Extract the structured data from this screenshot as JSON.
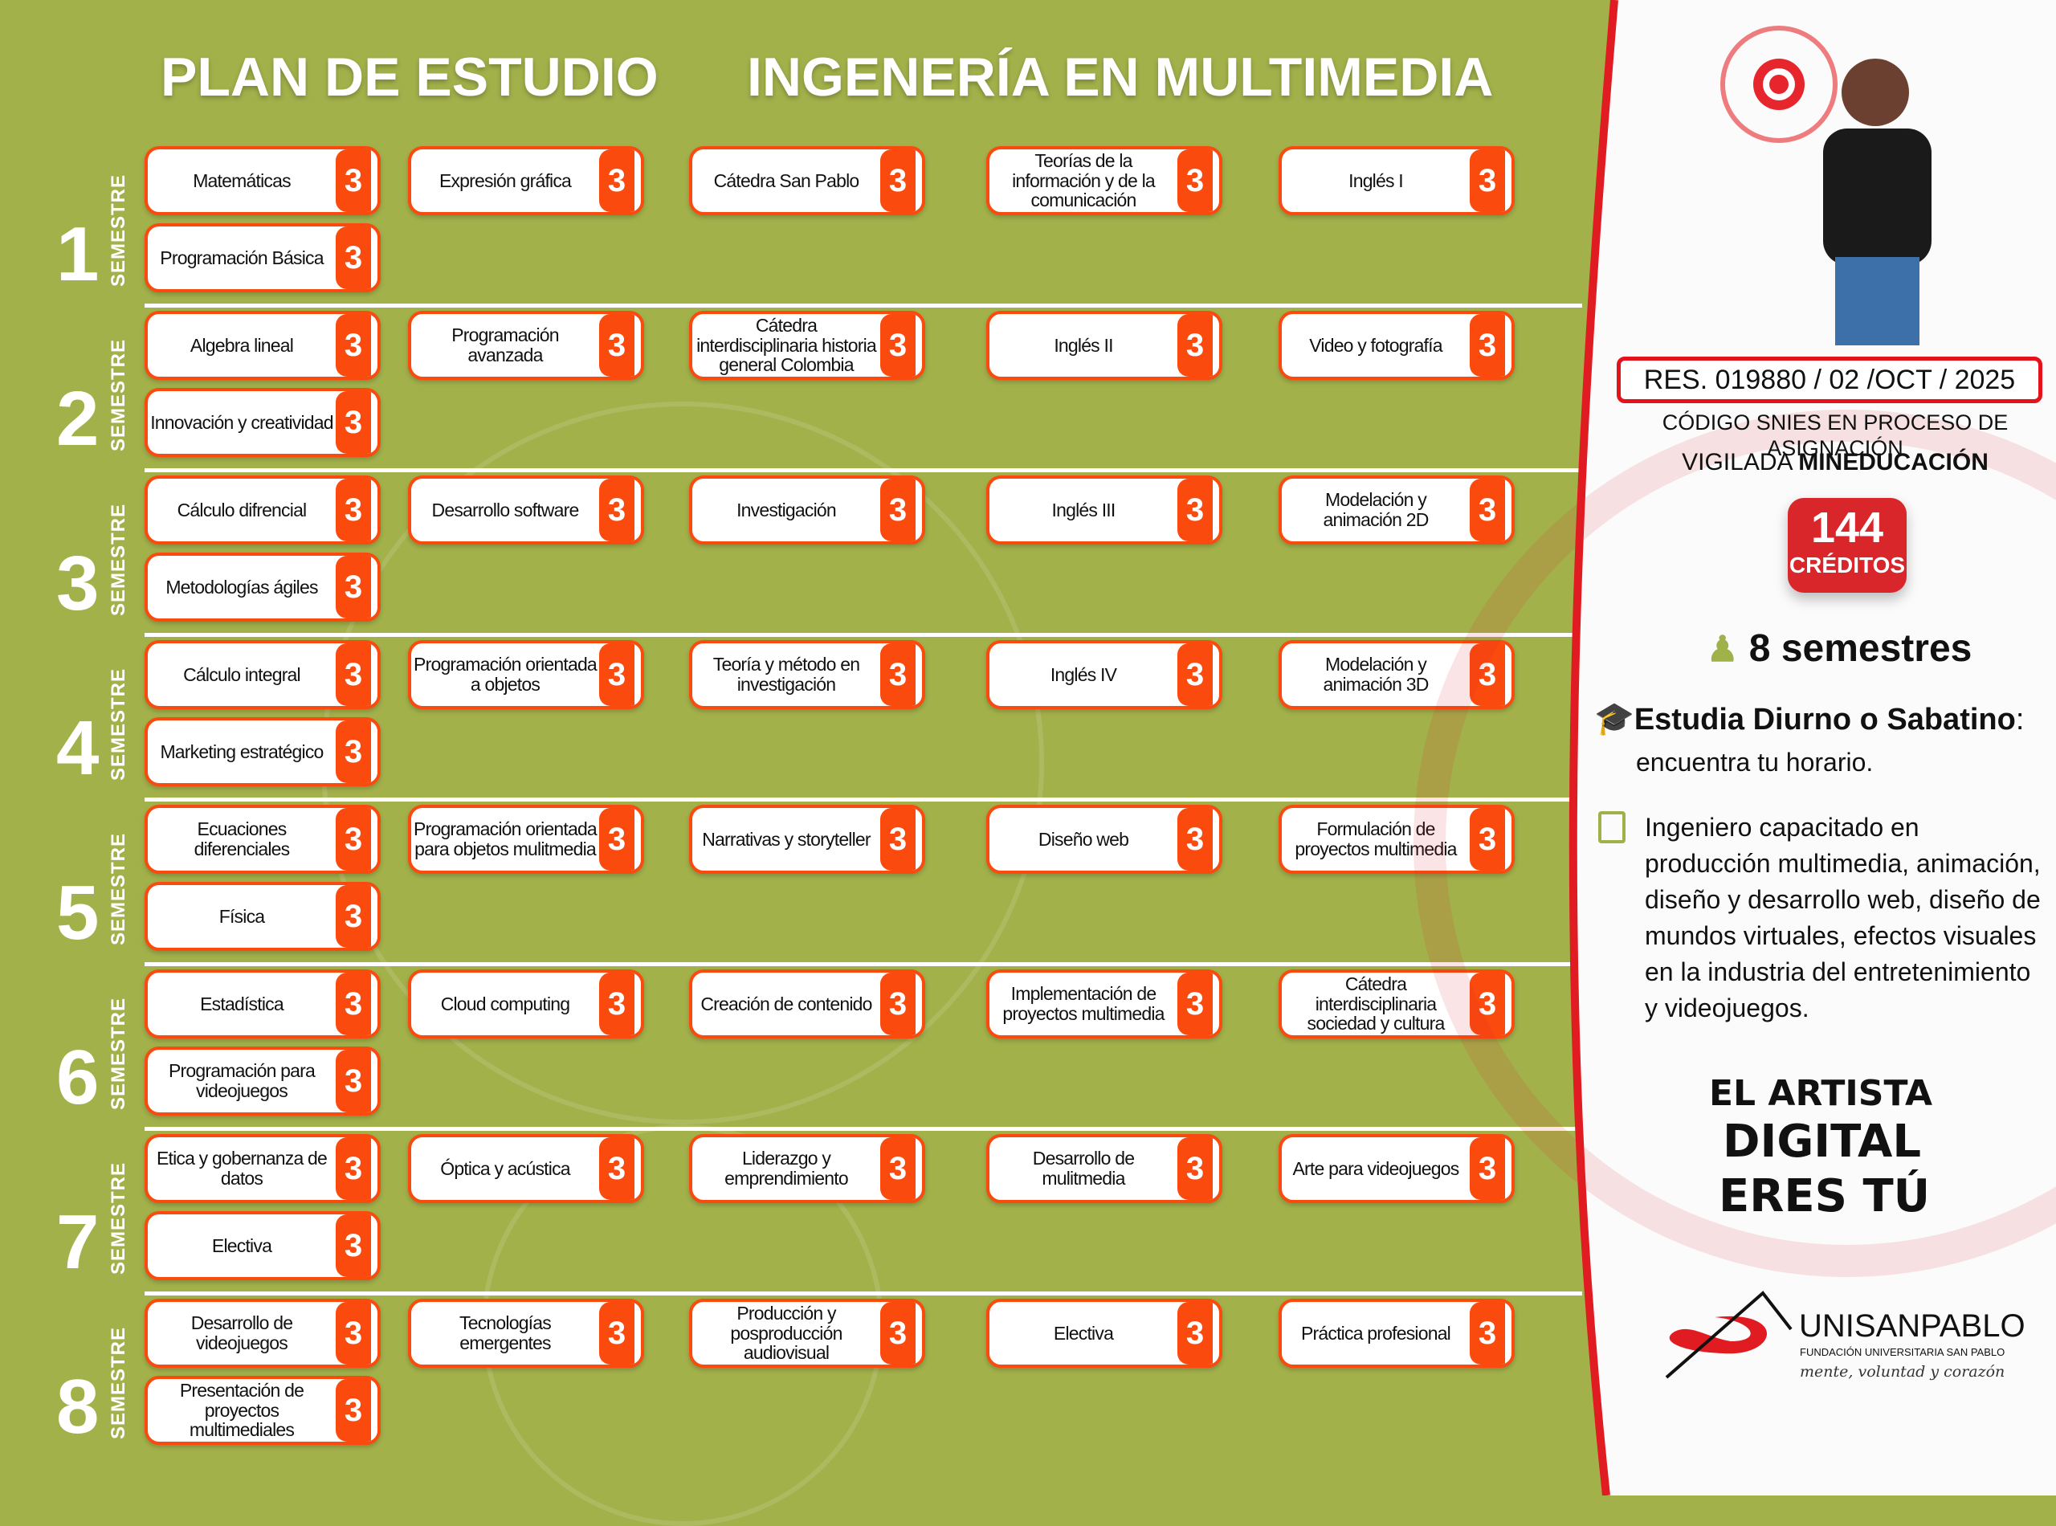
{
  "header": {
    "title_left": "PLAN DE ESTUDIO",
    "title_right": "INGENERÍA EN MULTIMEDIA"
  },
  "semester_label": "SEMESTRE",
  "semesters": [
    {
      "number": "1",
      "courses": [
        {
          "name": "Matemáticas",
          "credits": "3"
        },
        {
          "name": "Expresión gráfica",
          "credits": "3"
        },
        {
          "name": "Cátedra San Pablo",
          "credits": "3"
        },
        {
          "name": "Teorías de la información y de la comunicación",
          "credits": "3"
        },
        {
          "name": "Inglés I",
          "credits": "3"
        },
        {
          "name": "Programación Básica",
          "credits": "3"
        }
      ]
    },
    {
      "number": "2",
      "courses": [
        {
          "name": "Algebra lineal",
          "credits": "3"
        },
        {
          "name": "Programación avanzada",
          "credits": "3"
        },
        {
          "name": "Cátedra interdisciplinaria historia general Colombia",
          "credits": "3"
        },
        {
          "name": "Inglés II",
          "credits": "3"
        },
        {
          "name": "Video y fotografía",
          "credits": "3"
        },
        {
          "name": "Innovación y creatividad",
          "credits": "3"
        }
      ]
    },
    {
      "number": "3",
      "courses": [
        {
          "name": "Cálculo difrencial",
          "credits": "3"
        },
        {
          "name": "Desarrollo software",
          "credits": "3"
        },
        {
          "name": "Investigación",
          "credits": "3"
        },
        {
          "name": "Inglés III",
          "credits": "3"
        },
        {
          "name": "Modelación y animación 2D",
          "credits": "3"
        },
        {
          "name": "Metodologías ágiles",
          "credits": "3"
        }
      ]
    },
    {
      "number": "4",
      "courses": [
        {
          "name": "Cálculo integral",
          "credits": "3"
        },
        {
          "name": "Programación orientada a objetos",
          "credits": "3"
        },
        {
          "name": "Teoría y método en investigación",
          "credits": "3"
        },
        {
          "name": "Inglés IV",
          "credits": "3"
        },
        {
          "name": "Modelación y animación 3D",
          "credits": "3"
        },
        {
          "name": "Marketing estratégico",
          "credits": "3"
        }
      ]
    },
    {
      "number": "5",
      "courses": [
        {
          "name": "Ecuaciones diferenciales",
          "credits": "3"
        },
        {
          "name": "Programación orientada para objetos mulitmedia",
          "credits": "3"
        },
        {
          "name": "Narrativas y storyteller",
          "credits": "3"
        },
        {
          "name": "Diseño web",
          "credits": "3"
        },
        {
          "name": "Formulación de proyectos multimedia",
          "credits": "3"
        },
        {
          "name": "Física",
          "credits": "3"
        }
      ]
    },
    {
      "number": "6",
      "courses": [
        {
          "name": "Estadística",
          "credits": "3"
        },
        {
          "name": "Cloud computing",
          "credits": "3"
        },
        {
          "name": "Creación de contenido",
          "credits": "3"
        },
        {
          "name": "Implementación de proyectos multimedia",
          "credits": "3"
        },
        {
          "name": "Cátedra interdisciplinaria sociedad y cultura",
          "credits": "3"
        },
        {
          "name": "Programación para videojuegos",
          "credits": "3"
        }
      ]
    },
    {
      "number": "7",
      "courses": [
        {
          "name": "Etica y gobernanza de datos",
          "credits": "3"
        },
        {
          "name": "Óptica y acústica",
          "credits": "3"
        },
        {
          "name": "Liderazgo y emprendimiento",
          "credits": "3"
        },
        {
          "name": "Desarrollo de mulitmedia",
          "credits": "3"
        },
        {
          "name": "Arte para videojuegos",
          "credits": "3"
        },
        {
          "name": "Electiva",
          "credits": "3"
        }
      ]
    },
    {
      "number": "8",
      "courses": [
        {
          "name": "Desarrollo de videojuegos",
          "credits": "3"
        },
        {
          "name": "Tecnologías emergentes",
          "credits": "3"
        },
        {
          "name": "Producción y posproducción audiovisual",
          "credits": "3"
        },
        {
          "name": "Electiva",
          "credits": "3"
        },
        {
          "name": "Práctica profesional",
          "credits": "3"
        },
        {
          "name": "Presentación de proyectos multimediales",
          "credits": "3"
        }
      ]
    }
  ],
  "info": {
    "resolution": "RES. 019880 / 02 /OCT / 2025",
    "snies": "CÓDIGO SNIES EN PROCESO DE ASIGNACIÓN",
    "vigilada": "VIGILADA",
    "mineducacion": "MINEDUCACIÓN",
    "credits_number": "144",
    "credits_label": "CRÉDITOS",
    "semesters": "8 semestres",
    "schedule_bold": "Estudia Diurno o Sabatino",
    "schedule_rest": "encuentra tu horario.",
    "profile": "Ingeniero capacitado en producción multimedia, animación, diseño y desarrollo web, diseño de mundos virtuales, efectos visuales en la industria del entretenimiento y videojuegos."
  },
  "slogan": {
    "line1": "EL ARTISTA",
    "line2": "DIGITAL",
    "line3": "ERES TÚ"
  },
  "logo": {
    "name": "UNISANPABLO",
    "subtitle": "FUNDACIÓN UNIVERSITARIA SAN PABLO",
    "tagline": "mente, voluntad y corazón"
  },
  "colors": {
    "background": "#a3b14b",
    "accent": "#fb4a0e",
    "red": "#d9262b",
    "icon_green": "#9fb24a"
  }
}
